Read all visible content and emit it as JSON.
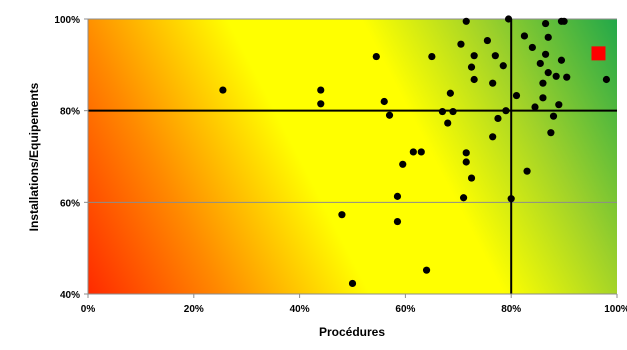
{
  "chart_data": {
    "type": "scatter",
    "title": "",
    "xlabel": "Procédures",
    "ylabel": "Installations/Equipements",
    "xlim": [
      0,
      100
    ],
    "ylim": [
      40,
      100
    ],
    "x_ticks": [
      "0%",
      "20%",
      "40%",
      "60%",
      "80%",
      "100%"
    ],
    "y_ticks": [
      "40%",
      "60%",
      "80%",
      "100%"
    ],
    "grid": "horizontal gridlines at 60% and 100%",
    "reference_lines": {
      "x": 80,
      "y": 80
    },
    "background": "diagonal gradient from red (bottom-left) through yellow to green (top-right)",
    "colors": {
      "points": "#000000",
      "highlight": "#ff0000",
      "red": "#ff2a00",
      "yellow": "#ffff00",
      "green": "#22a84a"
    },
    "series": [
      {
        "marker": "black-dot",
        "points": [
          [
            25.5,
            84.5
          ],
          [
            44.0,
            84.5
          ],
          [
            44.0,
            81.5
          ],
          [
            54.5,
            91.8
          ],
          [
            56.0,
            82.0
          ],
          [
            57.0,
            79.0
          ],
          [
            48.0,
            57.3
          ],
          [
            50.0,
            42.3
          ],
          [
            58.5,
            61.3
          ],
          [
            58.5,
            55.8
          ],
          [
            59.5,
            68.3
          ],
          [
            61.5,
            71.0
          ],
          [
            63.0,
            71.0
          ],
          [
            64.0,
            45.2
          ],
          [
            65.0,
            91.8
          ],
          [
            67.0,
            79.8
          ],
          [
            68.0,
            77.3
          ],
          [
            69.0,
            79.8
          ],
          [
            68.5,
            83.8
          ],
          [
            70.5,
            94.5
          ],
          [
            71.5,
            99.5
          ],
          [
            71.5,
            70.8
          ],
          [
            71.5,
            68.8
          ],
          [
            71.0,
            61.0
          ],
          [
            72.5,
            65.3
          ],
          [
            73.0,
            92.0
          ],
          [
            72.5,
            89.5
          ],
          [
            73.0,
            86.8
          ],
          [
            75.5,
            95.3
          ],
          [
            76.5,
            86.0
          ],
          [
            77.0,
            92.0
          ],
          [
            76.5,
            74.3
          ],
          [
            77.5,
            78.3
          ],
          [
            78.5,
            89.8
          ],
          [
            79.0,
            80.0
          ],
          [
            79.5,
            100.0
          ],
          [
            80.0,
            60.8
          ],
          [
            81.0,
            83.3
          ],
          [
            82.5,
            96.3
          ],
          [
            83.0,
            66.8
          ],
          [
            84.0,
            93.8
          ],
          [
            84.5,
            80.8
          ],
          [
            85.5,
            90.3
          ],
          [
            86.0,
            86.0
          ],
          [
            86.0,
            82.8
          ],
          [
            86.5,
            99.0
          ],
          [
            86.5,
            92.3
          ],
          [
            87.0,
            96.0
          ],
          [
            87.0,
            88.3
          ],
          [
            87.5,
            75.2
          ],
          [
            88.0,
            78.8
          ],
          [
            88.5,
            87.5
          ],
          [
            89.0,
            81.3
          ],
          [
            89.5,
            91.0
          ],
          [
            89.5,
            99.5
          ],
          [
            90.0,
            99.5
          ],
          [
            90.5,
            87.3
          ],
          [
            98.0,
            86.8
          ]
        ]
      },
      {
        "marker": "red-square",
        "points": [
          [
            96.5,
            92.5
          ]
        ]
      }
    ]
  }
}
